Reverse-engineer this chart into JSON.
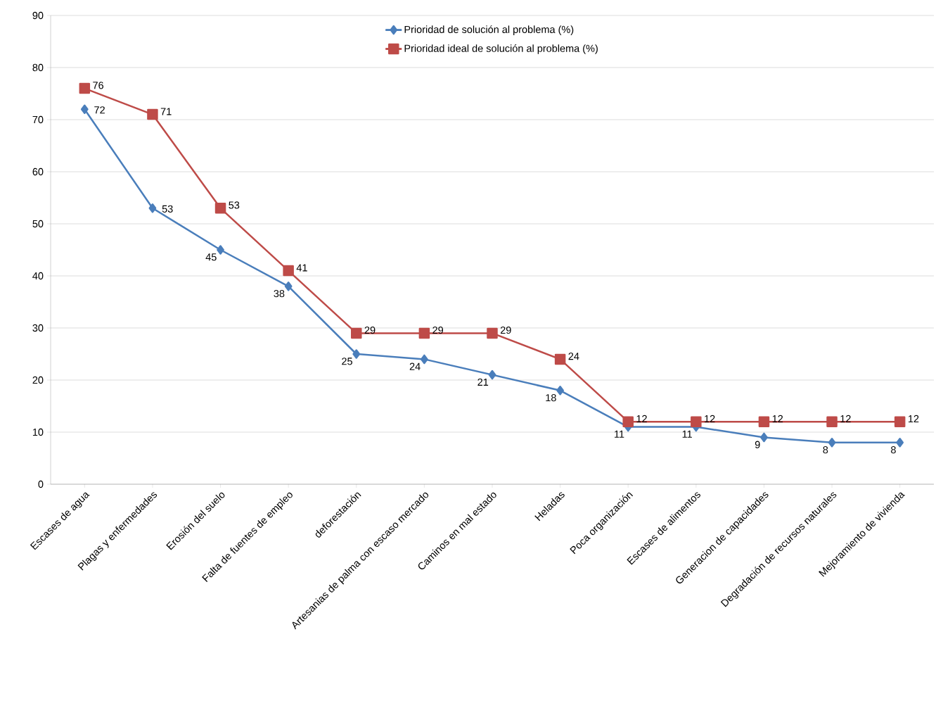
{
  "chart_data": {
    "type": "line",
    "categories": [
      "Escases de agua",
      "Plagas y enfermedades",
      "Erosión del suelo",
      "Falta de fuentes de empleo",
      "deforestación",
      "Artesanias de palma con escaso mercado",
      "Caminos en mal estado",
      "Heladas",
      "Poca organización",
      "Escases de alimentos",
      "Generacion de capacidades",
      "Degradación de recursos naturales",
      "Mejoramiento de vivienda"
    ],
    "series": [
      {
        "name": "Prioridad de solución al problema (%)",
        "color": "#4a7ebb",
        "marker": "diamond",
        "values": [
          72,
          53,
          45,
          38,
          25,
          24,
          21,
          18,
          11,
          11,
          9,
          8,
          8
        ]
      },
      {
        "name": "Prioridad  ideal de solución al problema (%)",
        "color": "#be4b48",
        "marker": "square",
        "values": [
          76,
          71,
          53,
          41,
          29,
          29,
          29,
          24,
          12,
          12,
          12,
          12,
          12
        ]
      }
    ],
    "ylim": [
      0,
      90
    ],
    "yticks": [
      0,
      10,
      20,
      30,
      40,
      50,
      60,
      70,
      80,
      90
    ],
    "grid": "y",
    "legend": "top",
    "data_labels": true,
    "line_style": "solid"
  }
}
